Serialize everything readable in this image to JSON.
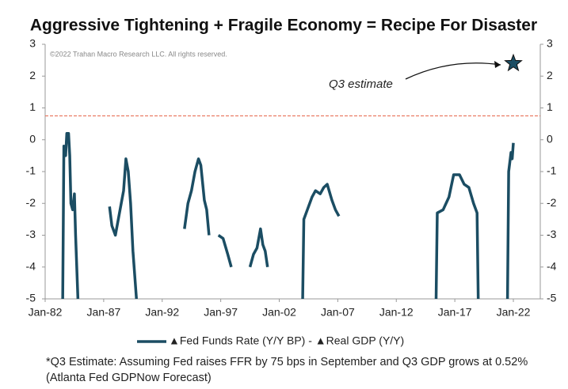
{
  "chart_data": {
    "type": "line",
    "title": "Aggressive Tightening + Fragile Economy = Recipe For Disaster",
    "copyright": "©2022 Trahan Macro Research LLC. All rights reserved.",
    "annotation": "Q3 estimate",
    "footnote": "*Q3 Estimate: Assuming Fed raises FFR by 75 bps in September and Q3 GDP grows at 0.52% (Atlanta Fed GDPNow Forecast)",
    "xlim": [
      1982,
      2024.3
    ],
    "xticks": [
      {
        "value": 1982,
        "label": "Jan-82"
      },
      {
        "value": 1987,
        "label": "Jan-87"
      },
      {
        "value": 1992,
        "label": "Jan-92"
      },
      {
        "value": 1997,
        "label": "Jan-97"
      },
      {
        "value": 2002,
        "label": "Jan-02"
      },
      {
        "value": 2007,
        "label": "Jan-07"
      },
      {
        "value": 2012,
        "label": "Jan-12"
      },
      {
        "value": 2017,
        "label": "Jan-17"
      },
      {
        "value": 2022,
        "label": "Jan-22"
      }
    ],
    "ylim": [
      -5,
      3
    ],
    "yticks": [
      -5,
      -4,
      -3,
      -2,
      -1,
      0,
      1,
      2,
      3
    ],
    "y2lim": [
      -5,
      3
    ],
    "y2ticks": [
      -5,
      -4,
      -3,
      -2,
      -1,
      0,
      1,
      2,
      3
    ],
    "reference_line": {
      "value": 0.75,
      "color": "#e8735a"
    },
    "series": [
      {
        "name": "▲Fed Funds Rate (Y/Y BP) - ▲Real GDP (Y/Y)",
        "color": "#1b4d63",
        "x": [
          1983.5,
          1983.6,
          1983.75,
          1983.85,
          1984.0,
          1984.1,
          1984.2,
          1984.35,
          1984.5,
          1984.6,
          1984.8,
          null,
          1987.5,
          1987.7,
          1988.0,
          1988.3,
          1988.5,
          1988.7,
          1988.9,
          1989.1,
          1989.3,
          1989.5,
          1989.8,
          null,
          1993.9,
          1994.2,
          1994.5,
          1994.8,
          1995.1,
          1995.3,
          1995.6,
          1995.8,
          1996.0,
          null,
          1996.8,
          1997.2,
          1997.6,
          1997.9,
          null,
          1999.5,
          1999.8,
          2000.1,
          2000.4,
          2000.6,
          2000.8,
          2001.0,
          null,
          2004.0,
          2004.1,
          2004.4,
          2004.8,
          2005.1,
          2005.5,
          2005.8,
          2006.1,
          2006.5,
          2006.8,
          2007.1,
          null,
          2015.4,
          2015.5,
          2016.0,
          2016.5,
          2016.9,
          2017.4,
          2017.8,
          2018.2,
          2018.6,
          2018.9,
          2019.0,
          null,
          2021.5,
          2021.6,
          2021.8,
          2021.9,
          2022.0
        ],
        "values": [
          -5,
          -0.2,
          -0.5,
          0.2,
          0.2,
          -0.5,
          -2.0,
          -2.2,
          -1.7,
          -3,
          -5,
          null,
          -2.1,
          -2.7,
          -3.0,
          -2.4,
          -2.0,
          -1.6,
          -0.6,
          -1.0,
          -2.0,
          -3.5,
          -5,
          null,
          -2.8,
          -2.0,
          -1.6,
          -1.0,
          -0.6,
          -0.8,
          -1.9,
          -2.2,
          -3.0,
          null,
          -3.0,
          -3.1,
          -3.6,
          -4.0,
          null,
          -4.0,
          -3.6,
          -3.4,
          -2.8,
          -3.3,
          -3.5,
          -4.0,
          null,
          -5,
          -2.5,
          -2.2,
          -1.8,
          -1.6,
          -1.7,
          -1.5,
          -1.4,
          -1.9,
          -2.2,
          -2.4,
          null,
          -5,
          -2.3,
          -2.2,
          -1.8,
          -1.1,
          -1.1,
          -1.4,
          -1.5,
          -2.0,
          -2.3,
          -5,
          null,
          -5,
          -1.0,
          -0.4,
          -0.6,
          -0.1
        ]
      }
    ],
    "markers": [
      {
        "x": 2022.0,
        "y": 2.4,
        "color": "#1b4d63"
      }
    ]
  }
}
